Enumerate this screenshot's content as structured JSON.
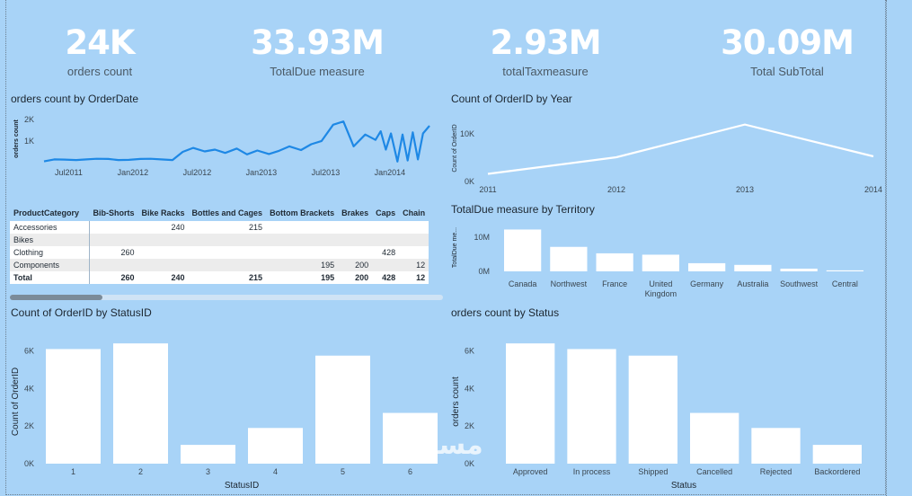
{
  "kpis": [
    {
      "value": "24K",
      "label": "orders count"
    },
    {
      "value": "33.93M",
      "label": "TotalDue measure"
    },
    {
      "value": "2.93M",
      "label": "totalTaxmeasure"
    },
    {
      "value": "30.09M",
      "label": "Total SubTotal"
    }
  ],
  "watermark": "مستقل",
  "matrix": {
    "headers": [
      "ProductCategory",
      "Bib-Shorts",
      "Bike Racks",
      "Bottles and Cages",
      "Bottom Brackets",
      "Brakes",
      "Caps",
      "Chain"
    ],
    "rows": [
      [
        "Accessories",
        "",
        "240",
        "215",
        "",
        "",
        "",
        ""
      ],
      [
        "Bikes",
        "",
        "",
        "",
        "",
        "",
        "",
        ""
      ],
      [
        "Clothing",
        "260",
        "",
        "",
        "",
        "",
        "428",
        ""
      ],
      [
        "Components",
        "",
        "",
        "",
        "195",
        "200",
        "",
        "12"
      ]
    ],
    "total": [
      "Total",
      "260",
      "240",
      "215",
      "195",
      "200",
      "428",
      "12"
    ]
  },
  "chart_data": [
    {
      "id": "orders_by_date",
      "type": "line",
      "title": "orders count by OrderDate",
      "xlabel": "",
      "ylabel": "orders count",
      "x_ticks": [
        "Jul2011",
        "Jan2012",
        "Jul2012",
        "Jan2013",
        "Jul2013",
        "Jan2014"
      ],
      "y_ticks": [
        "1K",
        "2K"
      ],
      "ylim": [
        0,
        2200
      ],
      "color": "#1e88e5",
      "x": [
        2011.42,
        2011.5,
        2011.58,
        2011.67,
        2011.75,
        2011.83,
        2011.92,
        2012.0,
        2012.08,
        2012.17,
        2012.25,
        2012.33,
        2012.42,
        2012.5,
        2012.58,
        2012.67,
        2012.75,
        2012.83,
        2012.92,
        2013.0,
        2013.08,
        2013.17,
        2013.25,
        2013.33,
        2013.42,
        2013.5,
        2013.58,
        2013.67,
        2013.75,
        2013.83,
        2013.92,
        2014.0,
        2014.04,
        2014.08,
        2014.12,
        2014.17,
        2014.21,
        2014.25,
        2014.29,
        2014.33,
        2014.37,
        2014.42
      ],
      "values": [
        60,
        150,
        140,
        120,
        150,
        180,
        170,
        120,
        130,
        170,
        180,
        150,
        120,
        500,
        680,
        520,
        600,
        450,
        650,
        380,
        560,
        400,
        550,
        750,
        580,
        850,
        1000,
        1750,
        1900,
        750,
        1300,
        1050,
        1450,
        600,
        1350,
        50,
        1300,
        100,
        1400,
        150,
        1350,
        1700
      ]
    },
    {
      "id": "count_by_year",
      "type": "line",
      "title": "Count of OrderID by Year",
      "xlabel": "",
      "ylabel": "Count of OrderID",
      "categories": [
        "2011",
        "2012",
        "2013",
        "2014"
      ],
      "values": [
        1600,
        5100,
        12000,
        5300
      ],
      "y_ticks": [
        "0K",
        "10K"
      ],
      "ylim": [
        0,
        14000
      ],
      "color": "#ffffff"
    },
    {
      "id": "totaldue_by_territory",
      "type": "bar",
      "title": "TotalDue measure by Territory",
      "xlabel": "",
      "ylabel": "TotalDue me...",
      "categories": [
        "Canada",
        "Northwest",
        "France",
        "United Kingdom",
        "Germany",
        "Australia",
        "Southwest",
        "Central"
      ],
      "values": [
        12300000,
        7200000,
        5300000,
        4900000,
        2400000,
        1900000,
        800000,
        300000
      ],
      "y_ticks": [
        "0M",
        "10M"
      ],
      "ylim": [
        0,
        14000000
      ],
      "color": "#ffffff"
    },
    {
      "id": "count_by_statusid",
      "type": "bar",
      "title": "Count of OrderID by StatusID",
      "xlabel": "StatusID",
      "ylabel": "Count of OrderID",
      "categories": [
        "1",
        "2",
        "3",
        "4",
        "5",
        "6"
      ],
      "values": [
        6100,
        6400,
        1000,
        1900,
        5750,
        2700
      ],
      "y_ticks": [
        "0K",
        "2K",
        "4K",
        "6K"
      ],
      "ylim": [
        0,
        6600
      ],
      "color": "#ffffff"
    },
    {
      "id": "orders_by_status",
      "type": "bar",
      "title": "orders count by Status",
      "xlabel": "Status",
      "ylabel": "orders count",
      "categories": [
        "Approved",
        "In process",
        "Shipped",
        "Cancelled",
        "Rejected",
        "Backordered"
      ],
      "values": [
        6400,
        6100,
        5750,
        2700,
        1900,
        1000
      ],
      "y_ticks": [
        "0K",
        "2K",
        "4K",
        "6K"
      ],
      "ylim": [
        0,
        6600
      ],
      "color": "#ffffff"
    }
  ]
}
